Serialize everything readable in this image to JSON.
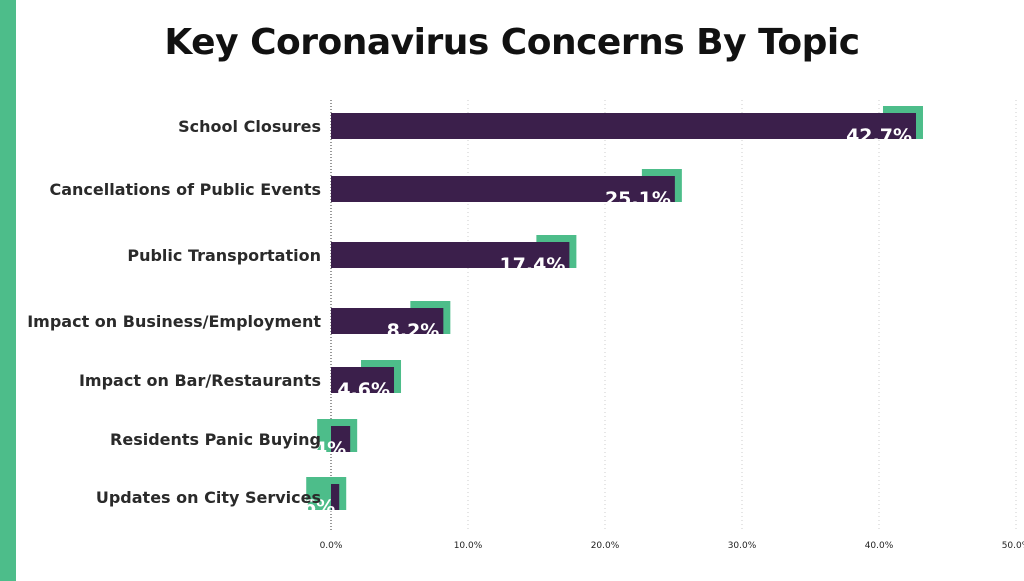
{
  "colors": {
    "bar": "#3b1f4b",
    "bar_shadow": "#4dbd8a",
    "accent_stripe": "#4dbd8a",
    "gridline": "#cccccc",
    "axis_line": "#333333"
  },
  "chart_data": {
    "type": "bar",
    "orientation": "horizontal",
    "title": "Key Coronavirus Concerns By Topic",
    "xlabel": "",
    "ylabel": "",
    "categories": [
      "School Closures",
      "Cancellations of Public Events",
      "Public Transportation",
      "Impact on Business/Employment",
      "Impact on Bar/Restaurants",
      "Residents Panic Buying",
      "Updates on City Services"
    ],
    "values": [
      42.7,
      25.1,
      17.4,
      8.2,
      4.6,
      1.4,
      0.6
    ],
    "value_labels": [
      "42.7%",
      "25.1%",
      "17.4%",
      "8.2%",
      "4.6%",
      "1.4%",
      "0.6%"
    ],
    "xlim": [
      0,
      50
    ],
    "xticks": [
      0,
      10,
      20,
      30,
      40,
      50
    ],
    "xtick_labels": [
      "0.0%",
      "10.0%",
      "20.0%",
      "30.0%",
      "40.0%",
      "50.0%"
    ],
    "grid": true,
    "legend": "none"
  }
}
